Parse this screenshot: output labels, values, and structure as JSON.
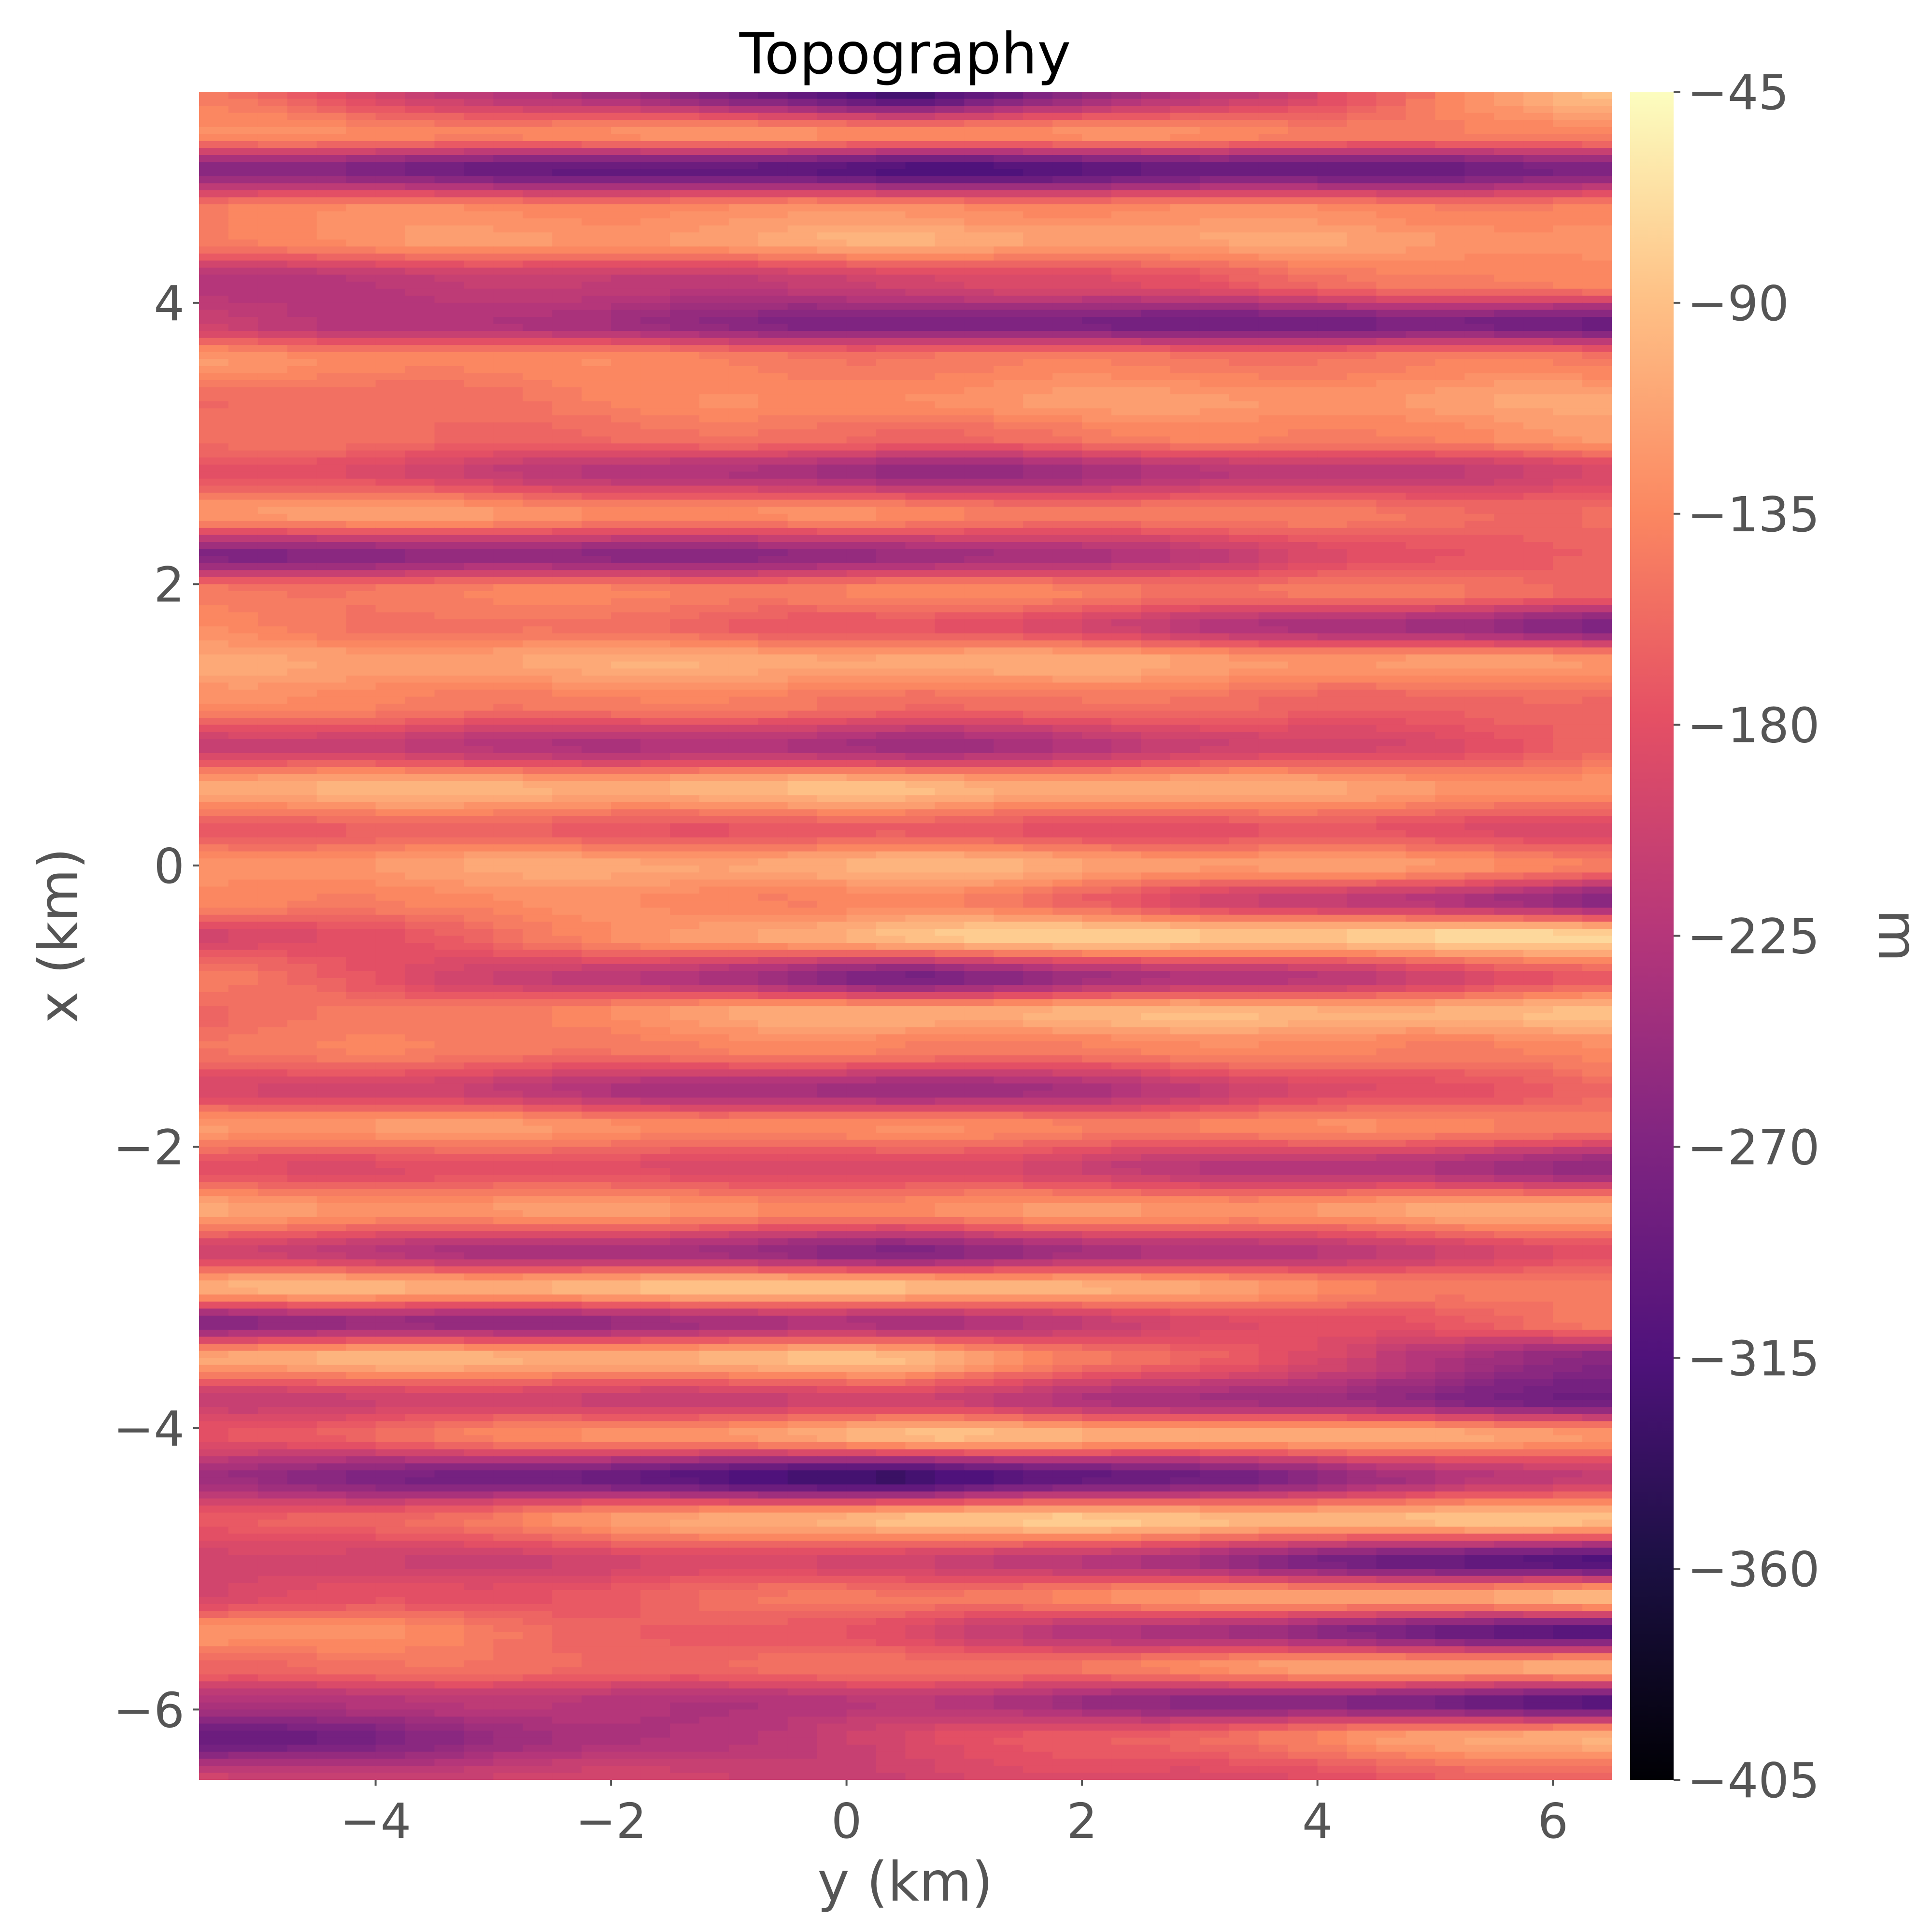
{
  "chart_data": {
    "type": "heatmap",
    "title": "Topography",
    "xlabel": "y (km)",
    "ylabel": "x (km)",
    "xlim": [
      -5.5,
      6.5
    ],
    "ylim": [
      -6.5,
      5.5
    ],
    "grid": false,
    "colormap": "magma",
    "colorbar": {
      "label": "m",
      "range": [
        -405,
        -45
      ],
      "ticks": [
        -45,
        -90,
        -135,
        -180,
        -225,
        -270,
        -315,
        -360,
        -405
      ],
      "tick_labels": [
        "−45",
        "−90",
        "−135",
        "−180",
        "−225",
        "−270",
        "−315",
        "−360",
        "−405"
      ]
    },
    "x_ticks": [
      -4,
      -2,
      0,
      2,
      4,
      6
    ],
    "x_tick_labels": [
      "−4",
      "−2",
      "0",
      "2",
      "4",
      "6"
    ],
    "y_ticks": [
      -6,
      -4,
      -2,
      0,
      2,
      4
    ],
    "y_tick_labels": [
      "−6",
      "−4",
      "−2",
      "0",
      "2",
      "4"
    ],
    "profile_x": [
      -6.5,
      -6.2,
      -5.95,
      -5.7,
      -5.45,
      -5.2,
      -4.95,
      -4.65,
      -4.35,
      -4.05,
      -3.8,
      -3.5,
      -3.25,
      -3.0,
      -2.75,
      -2.45,
      -2.15,
      -1.85,
      -1.6,
      -1.3,
      -1.05,
      -0.8,
      -0.5,
      -0.25,
      0.0,
      0.25,
      0.55,
      0.85,
      1.15,
      1.45,
      1.7,
      1.95,
      2.2,
      2.5,
      2.8,
      3.05,
      3.3,
      3.6,
      3.85,
      4.15,
      4.45,
      4.65,
      4.95,
      5.2,
      5.5
    ],
    "profile_west": [
      -200,
      -290,
      -220,
      -150,
      -110,
      -190,
      -200,
      -175,
      -240,
      -170,
      -200,
      -100,
      -260,
      -100,
      -200,
      -110,
      -175,
      -110,
      -180,
      -140,
      -160,
      -140,
      -200,
      -130,
      -120,
      -160,
      -100,
      -200,
      -130,
      -110,
      -130,
      -140,
      -260,
      -110,
      -170,
      -150,
      -160,
      -120,
      -200,
      -220,
      -130,
      -130,
      -260,
      -130,
      -140
    ],
    "profile_mid": [
      -195,
      -190,
      -220,
      -150,
      -185,
      -140,
      -190,
      -80,
      -330,
      -90,
      -200,
      -90,
      -230,
      -80,
      -260,
      -125,
      -185,
      -130,
      -250,
      -135,
      -95,
      -270,
      -80,
      -130,
      -95,
      -170,
      -90,
      -240,
      -145,
      -100,
      -170,
      -130,
      -250,
      -130,
      -250,
      -150,
      -120,
      -140,
      -270,
      -200,
      -100,
      -120,
      -310,
      -120,
      -320
    ],
    "profile_east": [
      -160,
      -90,
      -300,
      -90,
      -310,
      -90,
      -320,
      -90,
      -200,
      -110,
      -280,
      -260,
      -140,
      -150,
      -180,
      -100,
      -250,
      -130,
      -150,
      -130,
      -90,
      -170,
      -70,
      -260,
      -130,
      -180,
      -120,
      -160,
      -160,
      -120,
      -270,
      -150,
      -150,
      -150,
      -190,
      -120,
      -110,
      -140,
      -280,
      -120,
      -120,
      -130,
      -270,
      -140,
      -80
    ]
  }
}
